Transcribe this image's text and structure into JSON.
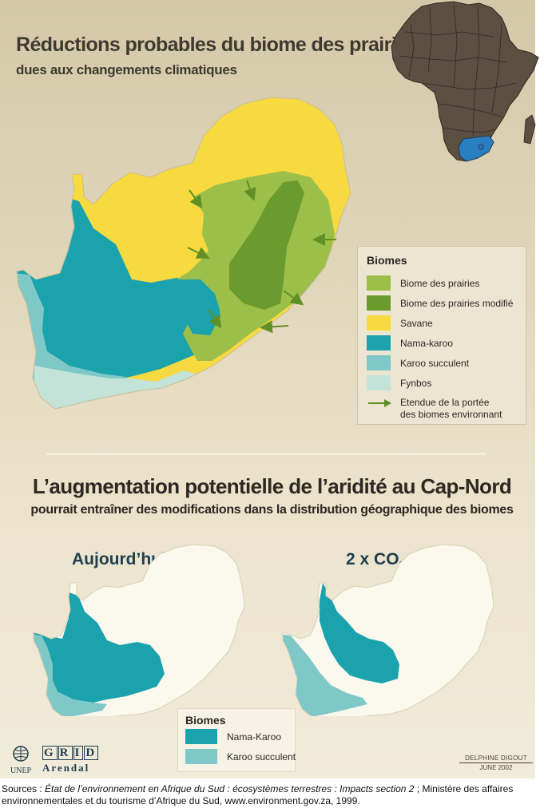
{
  "top_section": {
    "title": "Réductions probables du biome des prairies",
    "subtitle": "dues aux changements climatiques"
  },
  "legend_top": {
    "title": "Biomes",
    "items": [
      {
        "label": "Biome des prairies",
        "color": "#9cbf4a"
      },
      {
        "label": "Biome des prairies modifié",
        "color": "#6b9a2e"
      },
      {
        "label": "Savane",
        "color": "#f7d940"
      },
      {
        "label": "Nama-karoo",
        "color": "#1aa3ad"
      },
      {
        "label": "Karoo succulent",
        "color": "#7ec8c8"
      },
      {
        "label": "Fynbos",
        "color": "#c3e3d8"
      }
    ],
    "arrow_label_line1": "Etendue de la portée",
    "arrow_label_line2": "des biomes environnant",
    "arrow_color": "#5f8f25"
  },
  "inset_map": {
    "africa_color": "#5a4f40",
    "highlight_color": "#2a7fc0"
  },
  "bottom_section": {
    "title": "L’augmentation potentielle de l’aridité au Cap-Nord",
    "subtitle": "pourrait entraîner des modifications dans la distribution géographique des biomes"
  },
  "maps": {
    "today_title": "Aujourd’hui",
    "co2_title_main": "2 x CO",
    "co2_title_sub": "2"
  },
  "legend_bottom": {
    "title": "Biomes",
    "items": [
      {
        "label": "Nama-Karoo",
        "color": "#1aa3ad"
      },
      {
        "label": "Karoo succulent",
        "color": "#7ec8c8"
      }
    ]
  },
  "logos": {
    "unep": "UNEP",
    "grid_letters": [
      "G",
      "R",
      "I",
      "D"
    ],
    "arendal": "Arendal"
  },
  "credit": {
    "author": "DELPHINE DIGOUT",
    "date": "JUNE 2002"
  },
  "source": {
    "prefix": "Sources : ",
    "italic": "État de l’environnement en Afrique du Sud : écosystèmes terrestres : Impacts section 2",
    "suffix": " ; Ministère des affaires environnementales et du tourisme d’Afrique du Sud, www.environment.gov.za, 1999."
  }
}
